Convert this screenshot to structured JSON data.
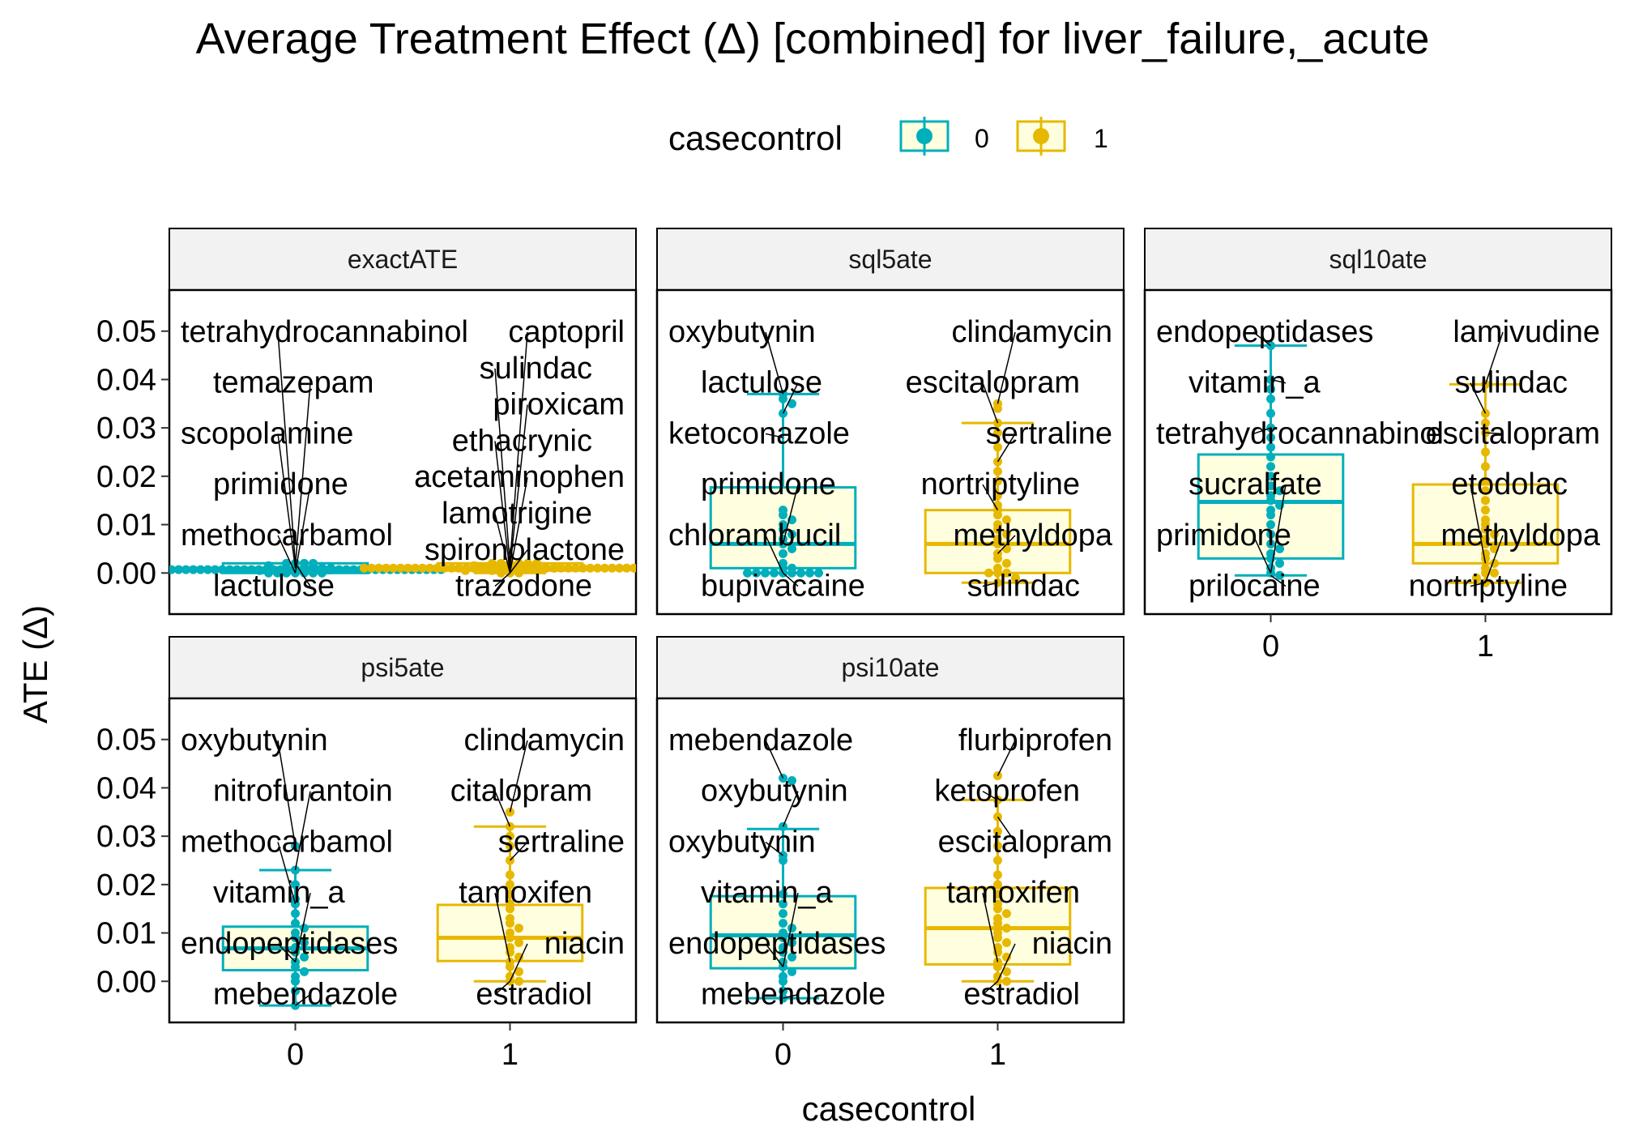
{
  "title": "Average Treatment Effect (Δ)  [combined] for liver_failure,_acute",
  "colors": {
    "case0": "#00AFBB",
    "case1": "#E7B800",
    "box_fill": "#FFFFE0",
    "strip_bg": "#F2F2F2"
  },
  "legend": {
    "title": "casecontrol",
    "items": [
      {
        "key": "0",
        "color": "#00AFBB"
      },
      {
        "key": "1",
        "color": "#E7B800"
      }
    ]
  },
  "axes": {
    "x_title": "casecontrol",
    "y_title": "ATE (Δ)",
    "x_categories": [
      "0",
      "1"
    ],
    "y_ticks": [
      "0.00",
      "0.01",
      "0.02",
      "0.03",
      "0.04",
      "0.05"
    ]
  },
  "chart_data": {
    "type": "box",
    "ylim": [
      -0.0085,
      0.0585
    ],
    "facets": [
      {
        "name": "exactATE",
        "groups": [
          {
            "casecontrol": "0",
            "q1": 0.0,
            "median": 0.0007,
            "q3": 0.002,
            "whisker_low": 0.0,
            "whisker_high": 0.002,
            "points": [
              0.002,
              0.002,
              0.001,
              0.001,
              0.001,
              0.0005,
              0.0005,
              0.0,
              0.0,
              0.0,
              0.0,
              0.0,
              0.001,
              0.002,
              0.0015,
              0.0,
              0.001,
              0.0,
              0.002,
              0.0005
            ],
            "labels": [
              {
                "text": "tetrahydrocannabinol",
                "y": 0.002
              },
              {
                "text": "temazepam",
                "y": 0.0015
              },
              {
                "text": "scopolamine",
                "y": 0.001
              },
              {
                "text": "primidone",
                "y": 0.0
              },
              {
                "text": "methocarbamol",
                "y": 0.0
              },
              {
                "text": "lactulose",
                "y": 0.002
              }
            ]
          },
          {
            "casecontrol": "1",
            "q1": 0.0005,
            "median": 0.001,
            "q3": 0.002,
            "whisker_low": 0.0,
            "whisker_high": 0.002,
            "points": [
              0.002,
              0.002,
              0.002,
              0.001,
              0.001,
              0.001,
              0.001,
              0.0,
              0.0,
              0.0005,
              0.002,
              0.0015,
              0.001,
              0.001,
              0.002,
              0.0015,
              0.002,
              0.001,
              0.0005,
              0.0
            ],
            "labels": [
              {
                "text": "captopril",
                "y": 0.002
              },
              {
                "text": "sulindac",
                "y": 0.0015
              },
              {
                "text": "piroxicam",
                "y": 0.001
              },
              {
                "text": "ethacrynic",
                "y": 0.0
              },
              {
                "text": "acetaminophen",
                "y": 0.0
              },
              {
                "text": "lamotrigine",
                "y": 0.0
              },
              {
                "text": "spironolactone",
                "y": 0.0
              },
              {
                "text": "trazodone",
                "y": 0.0
              }
            ]
          }
        ]
      },
      {
        "name": "sql5ate",
        "groups": [
          {
            "casecontrol": "0",
            "q1": 0.001,
            "median": 0.006,
            "q3": 0.0177,
            "whisker_low": 0.0,
            "whisker_high": 0.037,
            "points": [
              0.037,
              0.036,
              0.035,
              0.033,
              0.013,
              0.012,
              0.011,
              0.01,
              0.009,
              0.008,
              0.007,
              0.006,
              0.005,
              0.004,
              0.002,
              0.001,
              0.001,
              0.0,
              0.0,
              0.0,
              0.0,
              0.0,
              0.0,
              0.0,
              0.0,
              0.0
            ],
            "labels": [
              {
                "text": "oxybutynin",
                "y": 0.037
              },
              {
                "text": "lactulose",
                "y": 0.033
              },
              {
                "text": "ketoconazole",
                "y": 0.028
              },
              {
                "text": "primidone",
                "y": 0.006
              },
              {
                "text": "chlorambucil",
                "y": 0.0
              },
              {
                "text": "bupivacaine",
                "y": 0.0
              }
            ]
          },
          {
            "casecontrol": "1",
            "q1": 0.0,
            "median": 0.006,
            "q3": 0.013,
            "whisker_low": -0.002,
            "whisker_high": 0.031,
            "points": [
              0.035,
              0.034,
              0.031,
              0.029,
              0.026,
              0.023,
              0.021,
              0.019,
              0.016,
              0.014,
              0.013,
              0.012,
              0.011,
              0.01,
              0.009,
              0.008,
              0.007,
              0.006,
              0.005,
              0.004,
              0.003,
              0.002,
              0.001,
              0.0,
              0.0,
              0.0,
              -0.001,
              -0.002
            ],
            "labels": [
              {
                "text": "clindamycin",
                "y": 0.035
              },
              {
                "text": "escitalopram",
                "y": 0.031
              },
              {
                "text": "sertraline",
                "y": 0.023
              },
              {
                "text": "nortriptyline",
                "y": 0.013
              },
              {
                "text": "methyldopa",
                "y": 0.004
              },
              {
                "text": "sulindac",
                "y": -0.002
              }
            ]
          }
        ]
      },
      {
        "name": "sql10ate",
        "groups": [
          {
            "casecontrol": "0",
            "q1": 0.003,
            "median": 0.0147,
            "q3": 0.0245,
            "whisker_low": -0.0005,
            "whisker_high": 0.047,
            "points": [
              0.047,
              0.04,
              0.038,
              0.036,
              0.033,
              0.03,
              0.028,
              0.026,
              0.024,
              0.022,
              0.02,
              0.018,
              0.017,
              0.016,
              0.015,
              0.014,
              0.013,
              0.012,
              0.01,
              0.008,
              0.006,
              0.005,
              0.004,
              0.003,
              0.002,
              0.001,
              0.0,
              -0.0005
            ],
            "labels": [
              {
                "text": "endopeptidases",
                "y": 0.047
              },
              {
                "text": "vitamin_a",
                "y": 0.04
              },
              {
                "text": "tetrahydrocannabinol",
                "y": 0.03
              },
              {
                "text": "sucralfate",
                "y": 0.0
              },
              {
                "text": "primidone",
                "y": 0.0
              },
              {
                "text": "prilocaine",
                "y": -0.0005
              }
            ]
          },
          {
            "casecontrol": "1",
            "q1": 0.002,
            "median": 0.006,
            "q3": 0.0183,
            "whisker_low": -0.002,
            "whisker_high": 0.039,
            "points": [
              0.039,
              0.033,
              0.031,
              0.029,
              0.025,
              0.022,
              0.019,
              0.017,
              0.015,
              0.013,
              0.011,
              0.01,
              0.009,
              0.008,
              0.007,
              0.006,
              0.005,
              0.004,
              0.003,
              0.002,
              0.001,
              0.0,
              0.0,
              -0.001,
              -0.002
            ],
            "labels": [
              {
                "text": "lamivudine",
                "y": 0.039
              },
              {
                "text": "sulindac",
                "y": 0.033
              },
              {
                "text": "escitalopram",
                "y": 0.029
              },
              {
                "text": "etodolac",
                "y": 0.002
              },
              {
                "text": "methyldopa",
                "y": -0.002
              },
              {
                "text": "nortriptyline",
                "y": -0.002
              }
            ]
          }
        ]
      },
      {
        "name": "psi5ate",
        "groups": [
          {
            "casecontrol": "0",
            "q1": 0.0023,
            "median": 0.0068,
            "q3": 0.0113,
            "whisker_low": -0.005,
            "whisker_high": 0.023,
            "points": [
              0.028,
              0.023,
              0.02,
              0.017,
              0.016,
              0.014,
              0.012,
              0.011,
              0.01,
              0.009,
              0.008,
              0.007,
              0.006,
              0.005,
              0.004,
              0.003,
              0.002,
              0.001,
              0.0,
              -0.002,
              -0.005
            ],
            "labels": [
              {
                "text": "oxybutynin",
                "y": 0.028
              },
              {
                "text": "nitrofurantoin",
                "y": 0.023
              },
              {
                "text": "methocarbamol",
                "y": 0.016
              },
              {
                "text": "vitamin_a",
                "y": 0.004
              },
              {
                "text": "endopeptidases",
                "y": 0.004
              },
              {
                "text": "mebendazole",
                "y": -0.005
              }
            ]
          },
          {
            "casecontrol": "1",
            "q1": 0.0042,
            "median": 0.009,
            "q3": 0.0158,
            "whisker_low": 0.0,
            "whisker_high": 0.032,
            "points": [
              0.035,
              0.032,
              0.03,
              0.028,
              0.025,
              0.022,
              0.02,
              0.018,
              0.016,
              0.015,
              0.013,
              0.012,
              0.011,
              0.01,
              0.009,
              0.008,
              0.007,
              0.006,
              0.005,
              0.004,
              0.003,
              0.002,
              0.001,
              0.0,
              0.0
            ],
            "labels": [
              {
                "text": "clindamycin",
                "y": 0.035
              },
              {
                "text": "citalopram",
                "y": 0.032
              },
              {
                "text": "sertraline",
                "y": 0.025
              },
              {
                "text": "tamoxifen",
                "y": 0.004
              },
              {
                "text": "niacin",
                "y": 0.0
              },
              {
                "text": "estradiol",
                "y": 0.0
              }
            ]
          }
        ]
      },
      {
        "name": "psi10ate",
        "groups": [
          {
            "casecontrol": "0",
            "q1": 0.0027,
            "median": 0.0095,
            "q3": 0.0176,
            "whisker_low": -0.0035,
            "whisker_high": 0.0315,
            "points": [
              0.042,
              0.0415,
              0.032,
              0.026,
              0.025,
              0.018,
              0.016,
              0.014,
              0.012,
              0.011,
              0.01,
              0.009,
              0.008,
              0.007,
              0.006,
              0.005,
              0.004,
              0.003,
              0.002,
              0.001,
              0.0,
              -0.002,
              -0.0035
            ],
            "labels": [
              {
                "text": "mebendazole",
                "y": 0.042
              },
              {
                "text": "oxybutynin",
                "y": 0.032
              },
              {
                "text": "oxybutynin",
                "y": 0.026
              },
              {
                "text": "vitamin_a",
                "y": 0.003
              },
              {
                "text": "endopeptidases",
                "y": 0.003
              },
              {
                "text": "mebendazole",
                "y": -0.0035
              }
            ]
          },
          {
            "casecontrol": "1",
            "q1": 0.0035,
            "median": 0.011,
            "q3": 0.0193,
            "whisker_low": 0.0,
            "whisker_high": 0.0375,
            "points": [
              0.0425,
              0.0375,
              0.034,
              0.031,
              0.028,
              0.025,
              0.022,
              0.02,
              0.018,
              0.016,
              0.015,
              0.014,
              0.013,
              0.012,
              0.011,
              0.01,
              0.009,
              0.008,
              0.007,
              0.006,
              0.005,
              0.004,
              0.003,
              0.002,
              0.001,
              0.0,
              0.0
            ],
            "labels": [
              {
                "text": "flurbiprofen",
                "y": 0.0425
              },
              {
                "text": "ketoprofen",
                "y": 0.0375
              },
              {
                "text": "escitalopram",
                "y": 0.034
              },
              {
                "text": "tamoxifen",
                "y": 0.004
              },
              {
                "text": "niacin",
                "y": 0.0
              },
              {
                "text": "estradiol",
                "y": 0.0
              }
            ]
          }
        ]
      }
    ]
  }
}
